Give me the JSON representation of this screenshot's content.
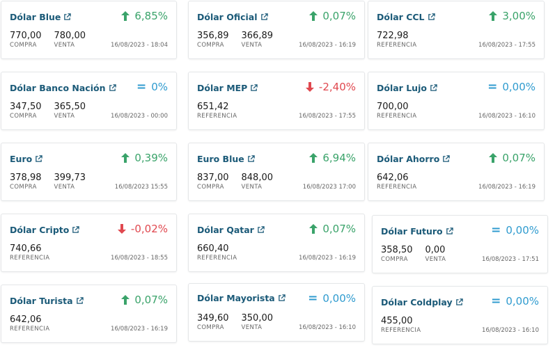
{
  "cards": [
    {
      "title": "Dólar Blue",
      "variation": "6,85%",
      "trend": "up",
      "values": [
        {
          "num": "770,00",
          "label": "COMPRA"
        },
        {
          "num": "780,00",
          "label": "VENTA"
        }
      ],
      "date": "16/08/2023 - 18:04"
    },
    {
      "title": "Dólar Oficial",
      "variation": "0,07%",
      "trend": "up",
      "values": [
        {
          "num": "356,89",
          "label": "COMPRA"
        },
        {
          "num": "366,89",
          "label": "VENTA"
        }
      ],
      "date": "16/08/2023 - 16:19"
    },
    {
      "title": "Dólar CCL",
      "variation": "3,00%",
      "trend": "up",
      "values": [
        {
          "num": "722,98",
          "label": "REFERENCIA"
        }
      ],
      "date": "16/08/2023 - 17:55"
    },
    {
      "title": "Dólar Banco Nación",
      "variation": "0%",
      "trend": "eq",
      "values": [
        {
          "num": "347,50",
          "label": "COMPRA"
        },
        {
          "num": "365,50",
          "label": "VENTA"
        }
      ],
      "date": "16/08/2023 - 00:00"
    },
    {
      "title": "Dólar MEP",
      "variation": "-2,40%",
      "trend": "down",
      "values": [
        {
          "num": "651,42",
          "label": "REFERENCIA"
        }
      ],
      "date": "16/08/2023 - 17:55"
    },
    {
      "title": "Dólar Lujo",
      "variation": "0,00%",
      "trend": "eq",
      "values": [
        {
          "num": "700,00",
          "label": "REFERENCIA"
        }
      ],
      "date": "16/08/2023 - 16:10"
    },
    {
      "title": "Euro",
      "variation": "0,39%",
      "trend": "up",
      "values": [
        {
          "num": "378,98",
          "label": "COMPRA"
        },
        {
          "num": "399,73",
          "label": "VENTA"
        }
      ],
      "date": "16/08/2023 15:55"
    },
    {
      "title": "Euro Blue",
      "variation": "6,94%",
      "trend": "up",
      "values": [
        {
          "num": "837,00",
          "label": "COMPRA"
        },
        {
          "num": "848,00",
          "label": "VENTA"
        }
      ],
      "date": "16/08/2023 17:00"
    },
    {
      "title": "Dólar Ahorro",
      "variation": "0,07%",
      "trend": "up",
      "values": [
        {
          "num": "642,06",
          "label": "REFERENCIA"
        }
      ],
      "date": "16/08/2023 - 16:19"
    },
    {
      "title": "Dólar Cripto",
      "variation": "-0,02%",
      "trend": "down",
      "values": [
        {
          "num": "740,66",
          "label": "REFERENCIA"
        }
      ],
      "date": "16/08/2023 - 18:55"
    },
    {
      "title": "Dólar Qatar",
      "variation": "0,07%",
      "trend": "up",
      "values": [
        {
          "num": "660,40",
          "label": "REFERENCIA"
        }
      ],
      "date": "16/08/2023 - 16:19"
    },
    {
      "title": "Dólar Futuro",
      "variation": "0,00%",
      "trend": "eq",
      "values": [
        {
          "num": "358,50",
          "label": "COMPRA"
        },
        {
          "num": "0,00",
          "label": "VENTA"
        }
      ],
      "date": "16/08/2023 - 17:51"
    },
    {
      "title": "Dólar Turista",
      "variation": "0,07%",
      "trend": "up",
      "values": [
        {
          "num": "642,06",
          "label": "REFERENCIA"
        }
      ],
      "date": "16/08/2023 - 16:19"
    },
    {
      "title": "Dólar Mayorista",
      "variation": "0,00%",
      "trend": "eq",
      "values": [
        {
          "num": "349,60",
          "label": "COMPRA"
        },
        {
          "num": "350,00",
          "label": "VENTA"
        }
      ],
      "date": "16/08/2023 - 16:10"
    },
    {
      "title": "Dólar Coldplay",
      "variation": "0,00%",
      "trend": "eq",
      "values": [
        {
          "num": "455,00",
          "label": "REFERENCIA"
        }
      ],
      "date": "16/08/2023 - 16:10"
    }
  ],
  "colors": {
    "title": "#1b5a78",
    "up": "#3aa36a",
    "down": "#e0484f",
    "eq": "#2f9bcf"
  },
  "icons": {
    "external": "external-link-icon",
    "up": "arrow-up-icon",
    "down": "arrow-down-icon",
    "eq": "equals-icon"
  }
}
